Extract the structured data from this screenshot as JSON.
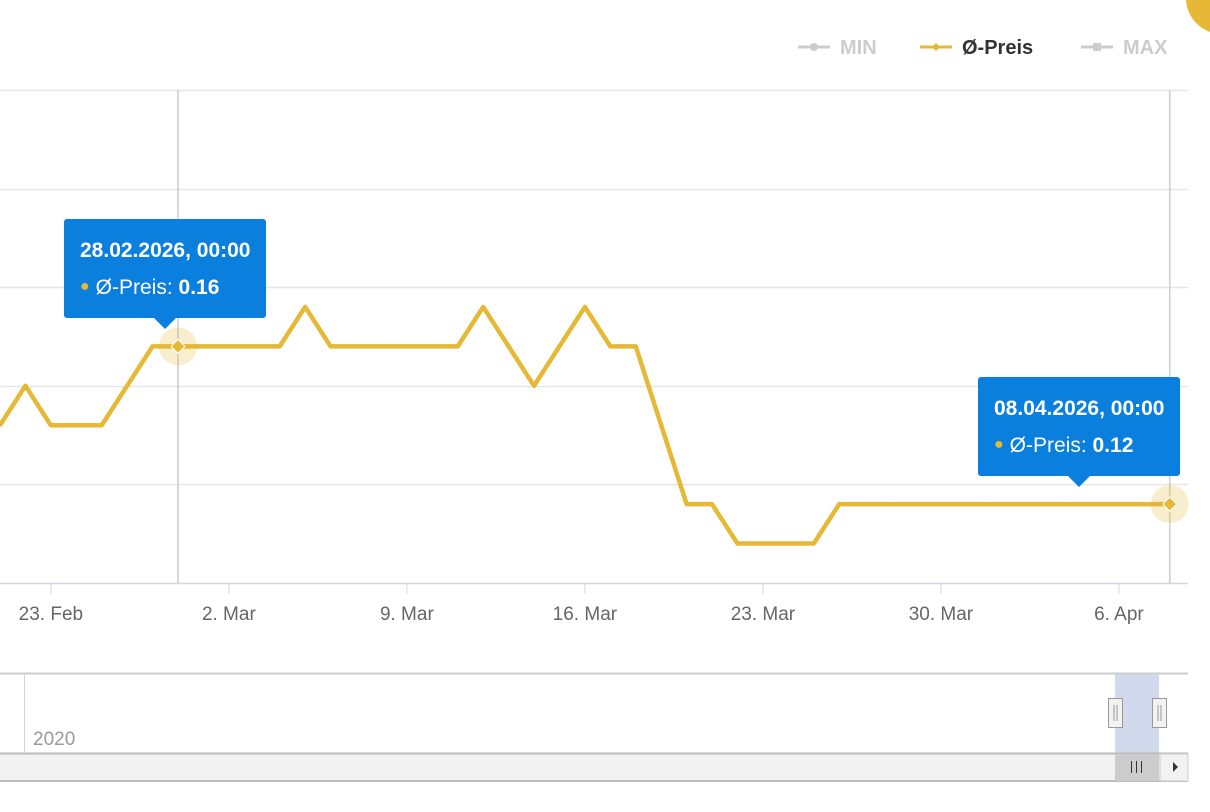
{
  "legend": [
    {
      "name": "MIN",
      "active": false,
      "color": "#cccccc"
    },
    {
      "name": "Ø-Preis",
      "active": true,
      "color": "#e5b935"
    },
    {
      "name": "MAX",
      "active": false,
      "color": "#cccccc"
    }
  ],
  "tooltips": [
    {
      "date": "28.02.2026, 00:00",
      "series": "Ø-Preis",
      "value": "0.16"
    },
    {
      "date": "08.04.2026, 00:00",
      "series": "Ø-Preis",
      "value": "0.12"
    }
  ],
  "navigator": {
    "year_label": "2020"
  },
  "chart_data": {
    "type": "line",
    "title": "",
    "xlabel": "",
    "ylabel": "",
    "x_range": [
      "2026-02-21",
      "2026-04-08"
    ],
    "ylim": [
      0.1,
      0.225
    ],
    "grid": true,
    "legend_placement": "top-right",
    "x_tick_labels": [
      {
        "date": "2026-02-23",
        "label": "23. Feb"
      },
      {
        "date": "2026-03-02",
        "label": "2. Mar"
      },
      {
        "date": "2026-03-09",
        "label": "9. Mar"
      },
      {
        "date": "2026-03-16",
        "label": "16. Mar"
      },
      {
        "date": "2026-03-23",
        "label": "23. Mar"
      },
      {
        "date": "2026-03-30",
        "label": "30. Mar"
      },
      {
        "date": "2026-04-06",
        "label": "6. Apr"
      }
    ],
    "series": [
      {
        "name": "Ø-Preis",
        "color": "#e5b935",
        "start": "2026-02-21",
        "interval": "1 day",
        "values": [
          0.14,
          0.15,
          0.14,
          0.14,
          0.14,
          0.15,
          0.16,
          0.16,
          0.16,
          0.16,
          0.16,
          0.16,
          0.17,
          0.16,
          0.16,
          0.16,
          0.16,
          0.16,
          0.16,
          0.17,
          0.16,
          0.15,
          0.16,
          0.17,
          0.16,
          0.16,
          0.14,
          0.12,
          0.12,
          0.11,
          0.11,
          0.11,
          0.11,
          0.12,
          0.12,
          0.12,
          0.12,
          0.12,
          0.12,
          0.12,
          0.12,
          0.12,
          0.12,
          0.12,
          0.12,
          0.12,
          0.12
        ]
      }
    ],
    "highlighted_points": [
      "2026-02-28",
      "2026-04-08"
    ]
  }
}
